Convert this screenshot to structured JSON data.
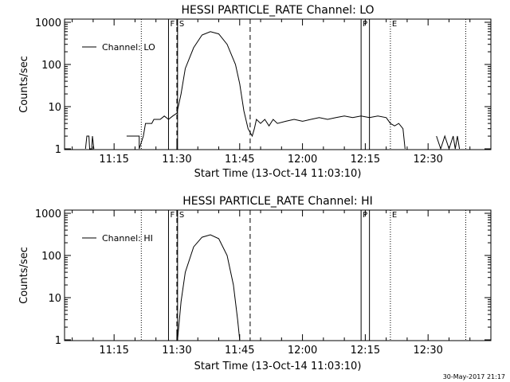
{
  "timestamp": "30-May-2017 21:17",
  "chart_data": [
    {
      "type": "line",
      "title": "HESSI PARTICLE_RATE Channel: LO",
      "xlabel": "Start Time (13-Oct-14 11:03:10)",
      "ylabel": "Counts/sec",
      "y_scale": "log",
      "ylim": [
        1,
        1000
      ],
      "xlim": [
        "11:03:10",
        "12:45:00"
      ],
      "x_ticks": [
        "11:15",
        "11:30",
        "11:45",
        "12:00",
        "12:15",
        "12:30"
      ],
      "y_ticks": [
        "1",
        "10",
        "100",
        "1000"
      ],
      "legend": "top-left",
      "series": [
        {
          "name": "Channel: LO",
          "color": "#000000",
          "points": [
            [
              "11:04:00",
              0
            ],
            [
              "11:08:00",
              0
            ],
            [
              "11:08:10",
              1
            ],
            [
              "11:08:30",
              2
            ],
            [
              "11:09:00",
              2
            ],
            [
              "11:09:10",
              1
            ],
            [
              "11:09:40",
              1
            ],
            [
              "11:09:50",
              2
            ],
            [
              "11:10:10",
              1
            ],
            [
              "11:11:00",
              0
            ],
            [
              "11:18:00",
              0
            ],
            [
              "11:18:00",
              2
            ],
            [
              "11:21:00",
              2
            ],
            [
              "11:21:00",
              1
            ],
            [
              "11:22:00",
              2
            ],
            [
              "11:22:30",
              4
            ],
            [
              "11:24:00",
              4
            ],
            [
              "11:24:30",
              5
            ],
            [
              "11:26:00",
              5
            ],
            [
              "11:27:00",
              6
            ],
            [
              "11:28:00",
              5
            ],
            [
              "11:29:00",
              6
            ],
            [
              "11:30:00",
              7
            ],
            [
              "11:31:00",
              20
            ],
            [
              "11:32:00",
              80
            ],
            [
              "11:34:00",
              250
            ],
            [
              "11:36:00",
              500
            ],
            [
              "11:38:00",
              600
            ],
            [
              "11:40:00",
              530
            ],
            [
              "11:42:00",
              300
            ],
            [
              "11:44:00",
              100
            ],
            [
              "11:45:00",
              35
            ],
            [
              "11:46:00",
              8
            ],
            [
              "11:47:00",
              3
            ],
            [
              "11:48:00",
              2
            ],
            [
              "11:48:30",
              3
            ],
            [
              "11:49:00",
              5
            ],
            [
              "11:50:00",
              4
            ],
            [
              "11:51:00",
              5
            ],
            [
              "11:52:00",
              3.5
            ],
            [
              "11:53:00",
              5
            ],
            [
              "11:54:00",
              4
            ],
            [
              "11:56:00",
              4.5
            ],
            [
              "11:58:00",
              5
            ],
            [
              "12:00:00",
              4.5
            ],
            [
              "12:02:00",
              5
            ],
            [
              "12:04:00",
              5.5
            ],
            [
              "12:06:00",
              5
            ],
            [
              "12:08:00",
              5.5
            ],
            [
              "12:10:00",
              6
            ],
            [
              "12:12:00",
              5.5
            ],
            [
              "12:14:00",
              6
            ],
            [
              "12:16:00",
              5.5
            ],
            [
              "12:18:00",
              6
            ],
            [
              "12:20:00",
              5.5
            ],
            [
              "12:21:00",
              4
            ],
            [
              "12:22:00",
              3.5
            ],
            [
              "12:23:00",
              4
            ],
            [
              "12:24:00",
              3
            ],
            [
              "12:24:30",
              1
            ],
            [
              "12:25:00",
              0
            ],
            [
              "12:32:00",
              0
            ],
            [
              "12:32:00",
              2
            ],
            [
              "12:33:00",
              1
            ],
            [
              "12:34:00",
              2
            ],
            [
              "12:35:00",
              1
            ],
            [
              "12:36:00",
              2
            ],
            [
              "12:36:30",
              1
            ],
            [
              "12:37:00",
              2
            ],
            [
              "12:37:30",
              1
            ],
            [
              "12:38:00",
              0
            ],
            [
              "12:44:00",
              0
            ]
          ]
        }
      ],
      "markers": [
        {
          "time": "11:21:30",
          "style": "dotted",
          "label": ""
        },
        {
          "time": "11:28:00",
          "style": "solid",
          "label": "F"
        },
        {
          "time": "11:30:10",
          "style": "solid",
          "label": "S"
        },
        {
          "time": "11:30:00",
          "style": "dashed",
          "label": ""
        },
        {
          "time": "11:47:30",
          "style": "dashed",
          "label": ""
        },
        {
          "time": "12:14:00",
          "style": "solid",
          "label": "P"
        },
        {
          "time": "12:16:00",
          "style": "solid",
          "label": ""
        },
        {
          "time": "12:21:00",
          "style": "dotted",
          "label": "E"
        },
        {
          "time": "12:39:00",
          "style": "dotted",
          "label": ""
        }
      ]
    },
    {
      "type": "line",
      "title": "HESSI PARTICLE_RATE Channel: HI",
      "xlabel": "Start Time (13-Oct-14 11:03:10)",
      "ylabel": "Counts/sec",
      "y_scale": "log",
      "ylim": [
        1,
        1000
      ],
      "xlim": [
        "11:03:10",
        "12:45:00"
      ],
      "x_ticks": [
        "11:15",
        "11:30",
        "11:45",
        "12:00",
        "12:15",
        "12:30"
      ],
      "y_ticks": [
        "1",
        "10",
        "100",
        "1000"
      ],
      "legend": "top-left",
      "series": [
        {
          "name": "Channel: HI",
          "color": "#000000",
          "points": [
            [
              "11:30:10",
              1
            ],
            [
              "11:31:00",
              8
            ],
            [
              "11:32:00",
              40
            ],
            [
              "11:34:00",
              160
            ],
            [
              "11:36:00",
              270
            ],
            [
              "11:38:00",
              310
            ],
            [
              "11:40:00",
              250
            ],
            [
              "11:42:00",
              100
            ],
            [
              "11:43:30",
              20
            ],
            [
              "11:44:30",
              3
            ],
            [
              "11:45:00",
              1
            ]
          ]
        }
      ],
      "markers": [
        {
          "time": "11:21:30",
          "style": "dotted",
          "label": ""
        },
        {
          "time": "11:28:00",
          "style": "solid",
          "label": "F"
        },
        {
          "time": "11:30:10",
          "style": "solid",
          "label": "S"
        },
        {
          "time": "11:30:00",
          "style": "dashed",
          "label": ""
        },
        {
          "time": "11:47:30",
          "style": "dashed",
          "label": ""
        },
        {
          "time": "12:14:00",
          "style": "solid",
          "label": "P"
        },
        {
          "time": "12:16:00",
          "style": "solid",
          "label": ""
        },
        {
          "time": "12:21:00",
          "style": "dotted",
          "label": "E"
        },
        {
          "time": "12:39:00",
          "style": "dotted",
          "label": ""
        }
      ]
    }
  ]
}
